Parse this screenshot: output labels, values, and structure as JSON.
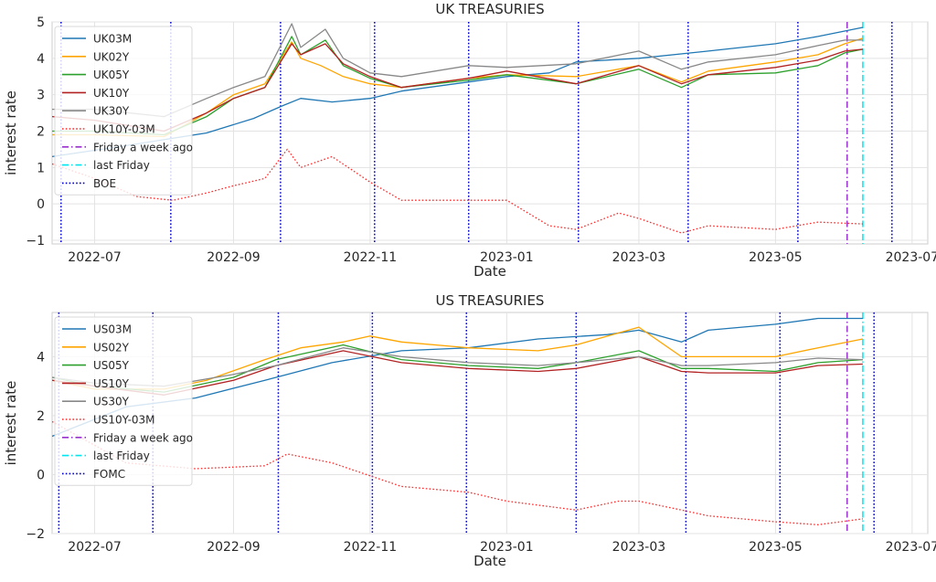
{
  "figure": {
    "background": "#ffffff"
  },
  "chart_data": [
    {
      "type": "line",
      "title": "UK TREASURIES",
      "xlabel": "Date",
      "ylabel": "interest rate",
      "xlim": [
        "2022-06-12",
        "2023-07-08"
      ],
      "ylim": [
        -1.1,
        5.0
      ],
      "xticks": [
        "2022-07-01",
        "2022-09-01",
        "2022-11-01",
        "2023-01-01",
        "2023-03-01",
        "2023-05-01",
        "2023-07-01"
      ],
      "xtick_labels": [
        "2022-07",
        "2022-09",
        "2022-11",
        "2023-01",
        "2023-03",
        "2023-05",
        "2023-07"
      ],
      "yticks": [
        -1,
        0,
        1,
        2,
        3,
        4,
        5
      ],
      "ytick_labels": [
        "−1",
        "0",
        "1",
        "2",
        "3",
        "4",
        "5"
      ],
      "grid": true,
      "legend_position": "top-left",
      "legend": [
        "UK03M",
        "UK02Y",
        "UK05Y",
        "UK10Y",
        "UK30Y",
        "UK10Y-03M",
        "Friday a week ago",
        "last Friday",
        "BOE"
      ],
      "series": [
        {
          "name": "UK03M",
          "color": "#1f77b4",
          "style": "solid",
          "x": [
            "2022-06-12",
            "2022-07-15",
            "2022-08-20",
            "2022-09-10",
            "2022-09-23",
            "2022-10-01",
            "2022-10-15",
            "2022-11-01",
            "2022-11-15",
            "2022-12-15",
            "2023-01-01",
            "2023-01-20",
            "2023-02-01",
            "2023-03-01",
            "2023-04-01",
            "2023-05-01",
            "2023-05-20",
            "2023-06-09"
          ],
          "y": [
            1.3,
            1.6,
            1.95,
            2.35,
            2.7,
            2.9,
            2.8,
            2.9,
            3.1,
            3.35,
            3.5,
            3.6,
            3.9,
            4.0,
            4.2,
            4.4,
            4.6,
            4.85
          ]
        },
        {
          "name": "UK02Y",
          "color": "#ffa500",
          "style": "solid",
          "x": [
            "2022-06-12",
            "2022-07-01",
            "2022-08-01",
            "2022-08-20",
            "2022-09-01",
            "2022-09-15",
            "2022-09-27",
            "2022-10-01",
            "2022-10-10",
            "2022-10-20",
            "2022-11-01",
            "2022-11-15",
            "2022-12-15",
            "2023-01-01",
            "2023-02-01",
            "2023-03-01",
            "2023-03-20",
            "2023-04-01",
            "2023-05-01",
            "2023-05-20",
            "2023-06-01",
            "2023-06-09"
          ],
          "y": [
            1.9,
            1.9,
            1.85,
            2.5,
            3.0,
            3.3,
            4.45,
            4.0,
            3.8,
            3.5,
            3.3,
            3.2,
            3.45,
            3.55,
            3.5,
            3.8,
            3.35,
            3.65,
            3.9,
            4.1,
            4.4,
            4.55
          ]
        },
        {
          "name": "UK05Y",
          "color": "#2ca02c",
          "style": "solid",
          "x": [
            "2022-06-12",
            "2022-07-01",
            "2022-08-01",
            "2022-08-20",
            "2022-09-01",
            "2022-09-15",
            "2022-09-27",
            "2022-10-01",
            "2022-10-12",
            "2022-10-20",
            "2022-11-01",
            "2022-11-15",
            "2022-12-15",
            "2023-01-01",
            "2023-02-01",
            "2023-03-01",
            "2023-03-20",
            "2023-04-01",
            "2023-05-01",
            "2023-05-20",
            "2023-06-01",
            "2023-06-09"
          ],
          "y": [
            2.0,
            2.0,
            1.9,
            2.4,
            2.9,
            3.2,
            4.6,
            4.1,
            4.5,
            3.8,
            3.45,
            3.2,
            3.4,
            3.55,
            3.3,
            3.7,
            3.2,
            3.55,
            3.6,
            3.8,
            4.15,
            4.25
          ]
        },
        {
          "name": "UK10Y",
          "color": "#b22222",
          "style": "solid",
          "x": [
            "2022-06-12",
            "2022-07-01",
            "2022-08-01",
            "2022-08-20",
            "2022-09-01",
            "2022-09-15",
            "2022-09-27",
            "2022-10-01",
            "2022-10-12",
            "2022-10-20",
            "2022-11-01",
            "2022-11-15",
            "2022-12-15",
            "2023-01-01",
            "2023-02-01",
            "2023-03-01",
            "2023-03-20",
            "2023-04-01",
            "2023-05-01",
            "2023-05-20",
            "2023-06-01",
            "2023-06-09"
          ],
          "y": [
            2.4,
            2.3,
            2.0,
            2.5,
            2.9,
            3.2,
            4.4,
            4.1,
            4.4,
            3.85,
            3.5,
            3.2,
            3.45,
            3.65,
            3.3,
            3.8,
            3.3,
            3.55,
            3.75,
            3.95,
            4.2,
            4.25
          ]
        },
        {
          "name": "UK30Y",
          "color": "#888888",
          "style": "solid",
          "x": [
            "2022-06-12",
            "2022-07-01",
            "2022-08-01",
            "2022-08-20",
            "2022-09-01",
            "2022-09-15",
            "2022-09-27",
            "2022-10-01",
            "2022-10-12",
            "2022-10-20",
            "2022-11-01",
            "2022-11-15",
            "2022-12-15",
            "2023-01-01",
            "2023-02-01",
            "2023-03-01",
            "2023-03-20",
            "2023-04-01",
            "2023-05-01",
            "2023-05-20",
            "2023-06-01",
            "2023-06-09"
          ],
          "y": [
            2.6,
            2.6,
            2.4,
            2.9,
            3.2,
            3.5,
            4.95,
            4.3,
            4.8,
            4.0,
            3.6,
            3.5,
            3.8,
            3.75,
            3.85,
            4.2,
            3.7,
            3.9,
            4.1,
            4.35,
            4.5,
            4.5
          ]
        },
        {
          "name": "UK10Y-03M",
          "color": "#ff2a2a",
          "style": "dotted",
          "x": [
            "2022-06-12",
            "2022-07-01",
            "2022-07-20",
            "2022-08-05",
            "2022-08-20",
            "2022-09-01",
            "2022-09-15",
            "2022-09-25",
            "2022-10-01",
            "2022-10-15",
            "2022-11-01",
            "2022-11-15",
            "2022-12-15",
            "2023-01-01",
            "2023-01-20",
            "2023-02-01",
            "2023-02-20",
            "2023-03-01",
            "2023-03-20",
            "2023-04-01",
            "2023-05-01",
            "2023-05-20",
            "2023-06-09"
          ],
          "y": [
            1.1,
            0.7,
            0.2,
            0.1,
            0.3,
            0.5,
            0.7,
            1.5,
            1.0,
            1.3,
            0.6,
            0.1,
            0.1,
            0.1,
            -0.6,
            -0.7,
            -0.25,
            -0.4,
            -0.8,
            -0.6,
            -0.7,
            -0.5,
            -0.55
          ]
        }
      ],
      "vlines": [
        {
          "label": "BOE",
          "color": "#0000cc",
          "style": "dotted",
          "dates": [
            "2022-06-16",
            "2022-08-04",
            "2022-09-22",
            "2022-11-03",
            "2022-12-15",
            "2023-02-02",
            "2023-03-23",
            "2023-05-11",
            "2023-06-22"
          ]
        },
        {
          "label": "Friday a week ago",
          "color": "#9932cc",
          "style": "dashdot",
          "dates": [
            "2023-06-02"
          ]
        },
        {
          "label": "last Friday",
          "color": "#00e5ee",
          "style": "dashdot",
          "dates": [
            "2023-06-09"
          ]
        }
      ]
    },
    {
      "type": "line",
      "title": "US TREASURIES",
      "xlabel": "Date",
      "ylabel": "interest rate",
      "xlim": [
        "2022-06-12",
        "2023-07-08"
      ],
      "ylim": [
        -2.0,
        5.5
      ],
      "xticks": [
        "2022-07-01",
        "2022-09-01",
        "2022-11-01",
        "2023-01-01",
        "2023-03-01",
        "2023-05-01",
        "2023-07-01"
      ],
      "xtick_labels": [
        "2022-07",
        "2022-09",
        "2022-11",
        "2023-01",
        "2023-03",
        "2023-05",
        "2023-07"
      ],
      "yticks": [
        -2,
        0,
        2,
        4
      ],
      "ytick_labels": [
        "−2",
        "0",
        "2",
        "4"
      ],
      "grid": true,
      "legend_position": "top-left",
      "legend": [
        "US03M",
        "US02Y",
        "US05Y",
        "US10Y",
        "US30Y",
        "US10Y-03M",
        "Friday a week ago",
        "last Friday",
        "FOMC"
      ],
      "series": [
        {
          "name": "US03M",
          "color": "#1f77b4",
          "style": "solid",
          "x": [
            "2022-06-12",
            "2022-07-15",
            "2022-08-15",
            "2022-09-15",
            "2022-10-15",
            "2022-11-15",
            "2022-12-15",
            "2023-01-15",
            "2023-02-15",
            "2023-03-01",
            "2023-03-20",
            "2023-04-01",
            "2023-05-01",
            "2023-05-20",
            "2023-06-09"
          ],
          "y": [
            1.3,
            2.3,
            2.6,
            3.2,
            3.8,
            4.2,
            4.3,
            4.6,
            4.75,
            4.9,
            4.5,
            4.9,
            5.1,
            5.3,
            5.3
          ]
        },
        {
          "name": "US02Y",
          "color": "#ffa500",
          "style": "solid",
          "x": [
            "2022-06-12",
            "2022-07-01",
            "2022-08-01",
            "2022-08-20",
            "2022-09-15",
            "2022-10-01",
            "2022-10-20",
            "2022-11-01",
            "2022-11-15",
            "2022-12-15",
            "2023-01-15",
            "2023-02-01",
            "2023-03-01",
            "2023-03-20",
            "2023-04-01",
            "2023-05-01",
            "2023-05-20",
            "2023-06-09"
          ],
          "y": [
            3.2,
            2.9,
            2.9,
            3.2,
            3.9,
            4.3,
            4.5,
            4.7,
            4.5,
            4.3,
            4.2,
            4.4,
            5.0,
            4.0,
            4.0,
            4.0,
            4.3,
            4.6
          ]
        },
        {
          "name": "US05Y",
          "color": "#2ca02c",
          "style": "solid",
          "x": [
            "2022-06-12",
            "2022-07-01",
            "2022-08-01",
            "2022-09-01",
            "2022-09-20",
            "2022-10-20",
            "2022-11-15",
            "2022-12-15",
            "2023-01-15",
            "2023-02-01",
            "2023-03-01",
            "2023-03-20",
            "2023-04-01",
            "2023-05-01",
            "2023-05-20",
            "2023-06-09"
          ],
          "y": [
            3.3,
            3.0,
            2.8,
            3.3,
            3.9,
            4.4,
            3.9,
            3.7,
            3.6,
            3.8,
            4.2,
            3.6,
            3.6,
            3.5,
            3.8,
            3.9
          ]
        },
        {
          "name": "US10Y",
          "color": "#b22222",
          "style": "solid",
          "x": [
            "2022-06-12",
            "2022-07-01",
            "2022-08-01",
            "2022-09-01",
            "2022-09-20",
            "2022-10-20",
            "2022-11-15",
            "2022-12-15",
            "2023-01-15",
            "2023-02-01",
            "2023-03-01",
            "2023-03-20",
            "2023-04-01",
            "2023-05-01",
            "2023-05-20",
            "2023-06-09"
          ],
          "y": [
            3.2,
            3.0,
            2.7,
            3.2,
            3.7,
            4.2,
            3.8,
            3.6,
            3.5,
            3.6,
            4.0,
            3.5,
            3.45,
            3.45,
            3.7,
            3.75
          ]
        },
        {
          "name": "US30Y",
          "color": "#888888",
          "style": "solid",
          "x": [
            "2022-06-12",
            "2022-07-01",
            "2022-08-01",
            "2022-09-01",
            "2022-09-20",
            "2022-10-20",
            "2022-11-15",
            "2022-12-15",
            "2023-01-15",
            "2023-02-01",
            "2023-03-01",
            "2023-03-20",
            "2023-04-01",
            "2023-05-01",
            "2023-05-20",
            "2023-06-09"
          ],
          "y": [
            3.3,
            3.1,
            3.0,
            3.4,
            3.7,
            4.3,
            4.0,
            3.8,
            3.7,
            3.8,
            4.0,
            3.7,
            3.7,
            3.8,
            3.95,
            3.9
          ]
        },
        {
          "name": "US10Y-03M",
          "color": "#ff2a2a",
          "style": "dotted",
          "x": [
            "2022-06-12",
            "2022-07-15",
            "2022-08-15",
            "2022-09-15",
            "2022-09-25",
            "2022-10-15",
            "2022-11-15",
            "2022-12-15",
            "2023-01-01",
            "2023-02-01",
            "2023-02-20",
            "2023-03-01",
            "2023-03-20",
            "2023-04-01",
            "2023-05-01",
            "2023-05-20",
            "2023-06-09"
          ],
          "y": [
            1.8,
            0.4,
            0.2,
            0.3,
            0.7,
            0.4,
            -0.4,
            -0.6,
            -0.9,
            -1.2,
            -0.9,
            -0.9,
            -1.2,
            -1.4,
            -1.6,
            -1.7,
            -1.5
          ]
        }
      ],
      "vlines": [
        {
          "label": "FOMC",
          "color": "#0000cc",
          "style": "dotted",
          "dates": [
            "2022-06-15",
            "2022-07-27",
            "2022-09-21",
            "2022-11-02",
            "2022-12-14",
            "2023-02-01",
            "2023-03-22",
            "2023-05-03",
            "2023-06-14"
          ]
        },
        {
          "label": "Friday a week ago",
          "color": "#9932cc",
          "style": "dashdot",
          "dates": [
            "2023-06-02"
          ]
        },
        {
          "label": "last Friday",
          "color": "#00e5ee",
          "style": "dashdot",
          "dates": [
            "2023-06-09"
          ]
        }
      ]
    }
  ]
}
